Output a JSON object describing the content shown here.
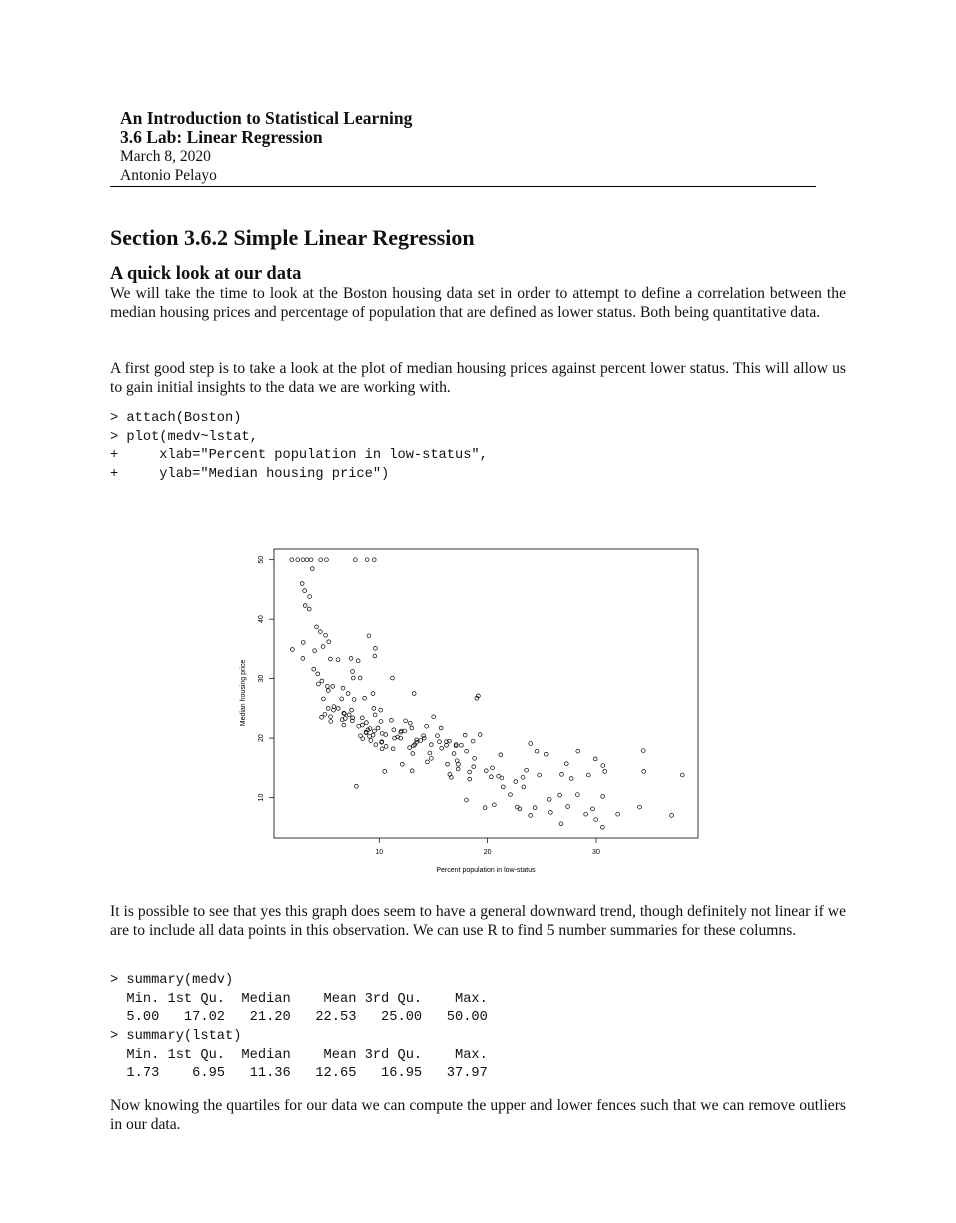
{
  "header": {
    "title": "An Introduction to Statistical Learning",
    "subtitle": "3.6 Lab: Linear Regression",
    "date": "March 8, 2020",
    "author": "Antonio Pelayo"
  },
  "section_title": "Section 3.6.2 Simple Linear Regression",
  "subsection_title": "A quick look at our data",
  "paragraphs": [
    "We will take the time to look at the Boston housing data set in order to attempt to define a correlation between the median housing prices and percentage of population that are defined as lower status. Both being quantitative data.",
    "A first good step is to take a look at the plot of median housing prices against percent lower status. This will allow us to gain initial insights to the data we are working with.",
    "It is possible to see that yes this graph does seem to have a general downward trend, though definitely not linear if we are to include all data points in this observation. We can use R to find 5 number summaries for these columns.",
    "Now knowing the quartiles for our data we can compute the upper and lower fences such that we can remove outliers in our data."
  ],
  "code_blocks": [
    [
      "> attach(Boston)",
      "> plot(medv~lstat,",
      "+     xlab=\"Percent population in low-status\",",
      "+     ylab=\"Median housing price\")"
    ],
    [
      "> summary(medv)",
      "  Min. 1st Qu.  Median    Mean 3rd Qu.    Max.",
      "  5.00   17.02   21.20   22.53   25.00   50.00",
      "> summary(lstat)",
      "  Min. 1st Qu.  Median    Mean 3rd Qu.    Max.",
      "  1.73    6.95   11.36   12.65   16.95   37.97"
    ]
  ],
  "chart_data": {
    "type": "scatter",
    "xlabel": "Percent population in low-status",
    "ylabel": "Median housing price",
    "xlim": [
      0.28,
      39.42
    ],
    "ylim": [
      3.2,
      51.8
    ],
    "xticks": [
      10,
      20,
      30
    ],
    "yticks": [
      10,
      20,
      30,
      40,
      50
    ],
    "color": "#000000",
    "x": [
      2.94,
      4.03,
      4.98,
      5.33,
      5.21,
      9.14,
      12.43,
      19.15,
      29.93,
      17.1,
      20.45,
      13.27,
      15.71,
      8.26,
      10.26,
      8.47,
      6.58,
      14.67,
      11.69,
      11.28,
      21.02,
      13.83,
      18.72,
      19.88,
      16.3,
      16.51,
      14.81,
      17.28,
      12.8,
      11.98,
      22.6,
      13.04,
      27.71,
      18.35,
      20.34,
      9.68,
      11.41,
      8.77,
      10.13,
      4.32,
      1.98,
      4.84,
      5.81,
      7.44,
      9.55,
      10.21,
      14.15,
      18.8,
      30.81,
      16.2,
      13.45,
      9.43,
      5.28,
      8.43,
      14.8,
      4.81,
      5.77,
      3.95,
      6.86,
      9.22,
      13.15,
      14.44,
      6.73,
      9.5,
      8.05,
      4.67,
      10.24,
      8.1,
      13.09,
      8.79,
      6.72,
      9.88,
      5.52,
      7.54,
      6.78,
      8.94,
      11.97,
      10.27,
      12.34,
      9.1,
      5.29,
      7.22,
      7.51,
      9.62,
      6.53,
      12.86,
      8.44,
      5.5,
      5.7,
      8.81,
      6.21,
      10.59,
      6.65,
      11.34,
      4.21,
      3.57,
      6.19,
      9.42,
      7.67,
      10.63,
      13.44,
      16.47,
      18.66,
      14.09,
      15.55,
      13,
      10.16,
      16.21,
      17.09,
      15.76,
      12.04,
      15.37,
      14.37,
      17.93,
      25.41,
      17.58,
      27.26,
      17.19,
      18.34,
      11.12,
      17.31,
      16.9,
      21.32,
      18.06,
      10.5,
      16.65,
      21.45,
      29.29,
      23.6,
      24.56,
      30.63,
      28.32,
      12.12,
      24.8,
      8.88,
      5.12,
      7.79,
      2.96,
      1.92,
      3.32,
      9.53,
      3.7,
      4.59,
      2.47,
      34.37,
      34.02,
      36.98,
      37.97,
      34.41,
      23.27,
      29.05,
      25.79,
      26.64,
      20.62,
      22.74,
      23.34,
      30.59,
      26.77,
      29.97,
      21.22,
      25.68,
      19.31,
      22.11,
      19.77,
      28.28,
      18.05,
      26.82,
      22.98,
      30.62,
      24.39,
      3.53,
      4.56,
      2.88,
      7.39,
      3.11,
      7.53,
      3.16,
      3.81,
      2.98,
      5.49,
      7.12,
      4.7,
      8.23,
      9.04,
      7.6,
      4.38,
      8.65,
      9.59,
      5.04,
      15.02,
      23.98,
      9.64,
      19.01,
      27.38,
      23.97,
      13.22,
      11.22,
      7.88,
      29.68,
      32
    ],
    "values": [
      33.4,
      34.7,
      24,
      36.2,
      28.7,
      21.6,
      22.9,
      27.1,
      16.5,
      18.9,
      15,
      18.9,
      21.7,
      20.4,
      18.2,
      19.9,
      23.1,
      17.5,
      20.2,
      18.2,
      13.6,
      19.6,
      15.2,
      14.5,
      15.6,
      13.9,
      16.6,
      14.8,
      18.4,
      21,
      12.7,
      14.5,
      13.2,
      13.1,
      13.5,
      18.9,
      20,
      21,
      24.7,
      30.8,
      34.9,
      26.6,
      25.3,
      24.7,
      21.2,
      19.3,
      20,
      16.6,
      14.4,
      19.4,
      19.7,
      20.5,
      25,
      23.4,
      18.9,
      35.4,
      24.7,
      31.6,
      23.3,
      19.6,
      18.7,
      16,
      22.2,
      25,
      33,
      23.5,
      19.4,
      22,
      17.4,
      20.9,
      24.2,
      21.7,
      22.8,
      23.4,
      24.1,
      21.4,
      20,
      20.8,
      21.2,
      20.3,
      28,
      23.9,
      22.9,
      23.9,
      26.6,
      22.5,
      22.2,
      23.6,
      28.7,
      22.6,
      25,
      20.6,
      28.4,
      21.4,
      38.7,
      43.8,
      33.2,
      27.5,
      26.5,
      18.6,
      19.3,
      19.5,
      19.5,
      20.4,
      19.4,
      21.7,
      22.8,
      18.8,
      18.7,
      18.3,
      21.2,
      20.4,
      22,
      20.5,
      17.3,
      18.8,
      15.7,
      16.2,
      14.3,
      23,
      15.6,
      17.4,
      13.3,
      17.8,
      14.4,
      13.4,
      11.8,
      13.8,
      14.6,
      17.8,
      15.4,
      17.8,
      15.6,
      13.8,
      50,
      50,
      50,
      50,
      50,
      50,
      50,
      50,
      50,
      50,
      17.9,
      8.4,
      7,
      13.8,
      14.4,
      13.4,
      7.2,
      7.5,
      10.4,
      8.8,
      8.4,
      11.8,
      5,
      5.6,
      6.3,
      17.2,
      9.7,
      20.6,
      10.5,
      8.3,
      10.5,
      9.6,
      13.9,
      8.1,
      10.2,
      8.3,
      41.7,
      37.9,
      46,
      33.4,
      44.8,
      31.2,
      42.3,
      48.5,
      36.1,
      33.3,
      27.5,
      29.6,
      30.1,
      37.2,
      30.1,
      29.1,
      26.7,
      33.8,
      37.3,
      23.6,
      19.1,
      35.1,
      26.7,
      8.5,
      7,
      27.5,
      30.1,
      11.9,
      8.1,
      7.2
    ]
  }
}
